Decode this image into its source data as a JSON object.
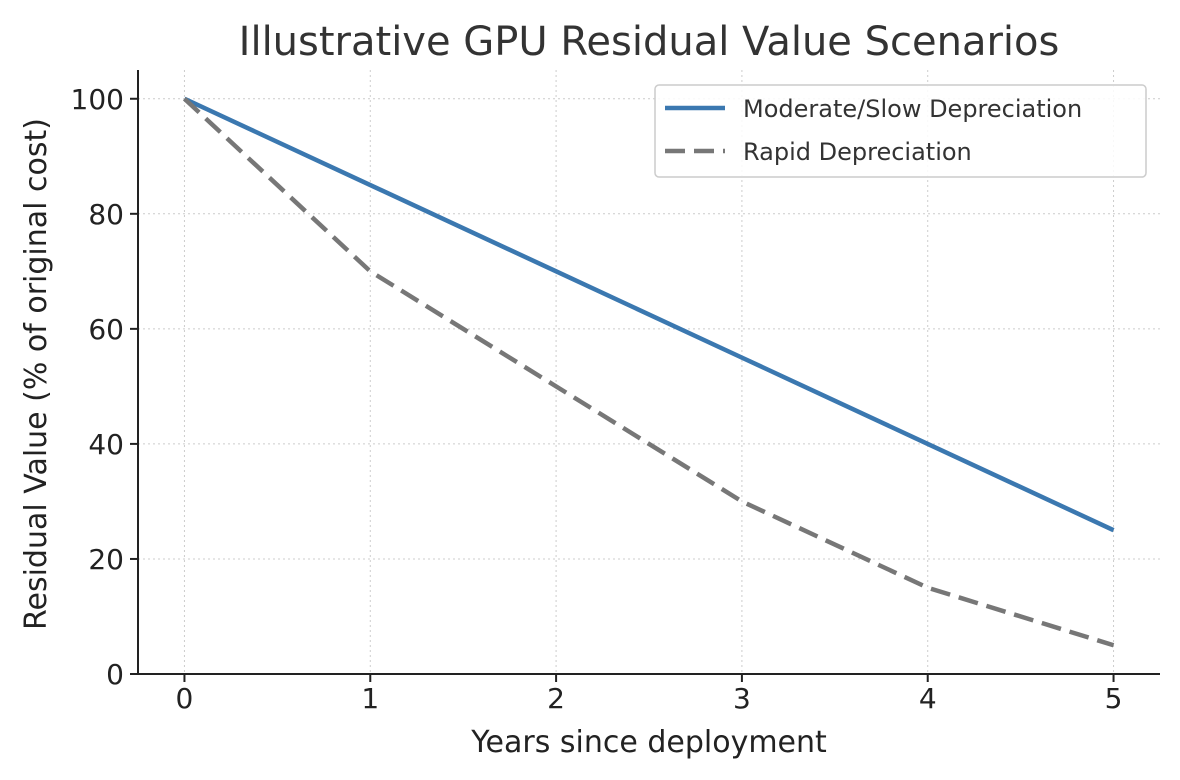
{
  "chart_data": {
    "type": "line",
    "title": "Illustrative GPU Residual Value Scenarios",
    "xlabel": "Years since deployment",
    "ylabel": "Residual Value (% of original cost)",
    "x": [
      0,
      1,
      2,
      3,
      4,
      5
    ],
    "xlim": [
      -0.25,
      5.25
    ],
    "ylim": [
      0,
      105
    ],
    "xticks": [
      0,
      1,
      2,
      3,
      4,
      5
    ],
    "yticks": [
      0,
      20,
      40,
      60,
      80,
      100
    ],
    "grid": true,
    "legend_position": "top-right",
    "series": [
      {
        "name": "Moderate/Slow Depreciation",
        "values": [
          100,
          85,
          70,
          55,
          40,
          25
        ],
        "color": "#3b78b0",
        "style": "solid"
      },
      {
        "name": "Rapid Depreciation",
        "values": [
          100,
          70,
          50,
          30,
          15,
          5
        ],
        "color": "#777777",
        "style": "dashed"
      }
    ]
  }
}
